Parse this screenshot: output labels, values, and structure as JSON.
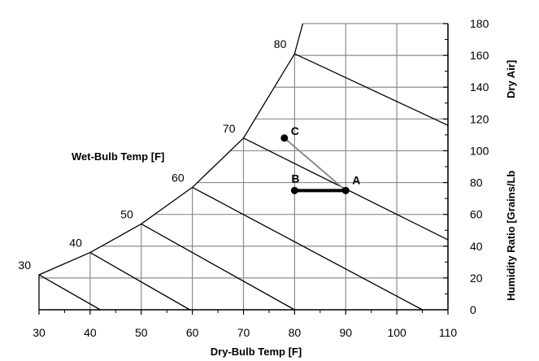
{
  "chart_data": {
    "type": "scatter",
    "title": "",
    "xlabel": "Dry-Bulb Temp [F]",
    "ylabel": "Humidity Ratio [Grains/Lb Dry Air]",
    "ylabel_line1": "Humidity Ratio [Grains/Lb",
    "ylabel_line2": "Dry Air]",
    "xlim": [
      30,
      110
    ],
    "ylim": [
      0,
      180
    ],
    "x_ticks": [
      30,
      40,
      50,
      60,
      70,
      80,
      90,
      100,
      110
    ],
    "y_ticks": [
      0,
      20,
      40,
      60,
      80,
      100,
      120,
      140,
      160,
      180
    ],
    "grid": true,
    "saturation_curve": [
      {
        "x": 30,
        "y": 22
      },
      {
        "x": 40,
        "y": 36
      },
      {
        "x": 50,
        "y": 54
      },
      {
        "x": 60,
        "y": 77
      },
      {
        "x": 70,
        "y": 108
      },
      {
        "x": 80,
        "y": 161
      },
      {
        "x": 81.6,
        "y": 180
      }
    ],
    "wet_bulb_label": "Wet-Bulb Temp [F]",
    "wet_bulb_lines": [
      {
        "label": "30",
        "from": {
          "x": 30,
          "y": 22
        },
        "to": {
          "x": 42,
          "y": 0
        }
      },
      {
        "label": "40",
        "from": {
          "x": 40,
          "y": 36
        },
        "to": {
          "x": 59.5,
          "y": 0
        }
      },
      {
        "label": "50",
        "from": {
          "x": 50,
          "y": 54
        },
        "to": {
          "x": 80,
          "y": 0
        }
      },
      {
        "label": "60",
        "from": {
          "x": 60,
          "y": 77
        },
        "to": {
          "x": 105,
          "y": 0
        }
      },
      {
        "label": "70",
        "from": {
          "x": 70,
          "y": 108
        },
        "to": {
          "x": 110,
          "y": 44
        }
      },
      {
        "label": "80",
        "from": {
          "x": 80,
          "y": 161
        },
        "to": {
          "x": 110,
          "y": 116
        }
      }
    ],
    "points": [
      {
        "label": "A",
        "x": 90,
        "y": 75
      },
      {
        "label": "B",
        "x": 80,
        "y": 75
      },
      {
        "label": "C",
        "x": 78,
        "y": 108
      }
    ],
    "process_lines": [
      {
        "from": "B",
        "to": "A",
        "style": "thick-black"
      },
      {
        "from": "A",
        "to": "C",
        "style": "gray"
      }
    ]
  }
}
